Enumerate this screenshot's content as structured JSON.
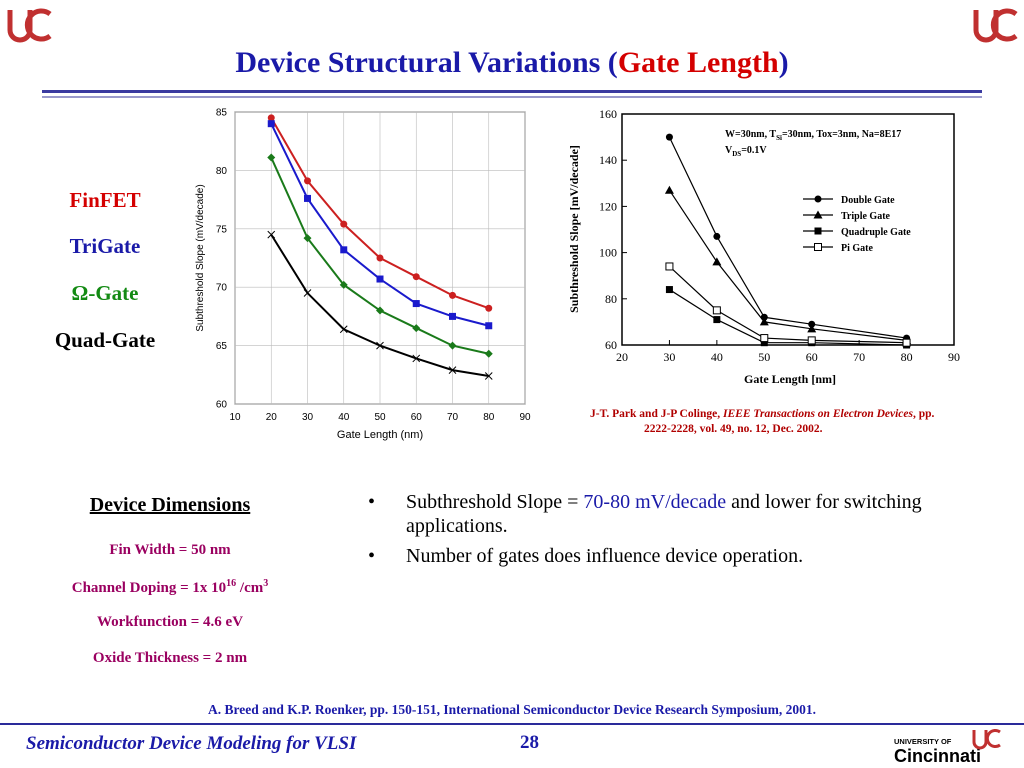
{
  "slide": {
    "title_prefix": "Device Structural Variations (",
    "title_highlight": "Gate Length",
    "title_suffix": ")",
    "page_number": "28",
    "footer": "Semiconductor Device Modeling for VLSI"
  },
  "logos": {
    "top_left_icon": "uc-logo-icon",
    "top_right_icon": "uc-logo-icon",
    "footer_university_line": "UNIVERSITY OF",
    "footer_name": "Cincinnati"
  },
  "legend_labels": [
    {
      "label": "FinFET",
      "color": "#d40000"
    },
    {
      "label": "TriGate",
      "color": "#1a1aa8"
    },
    {
      "label": "Ω-Gate",
      "color": "#138a13"
    },
    {
      "label": "Quad-Gate",
      "color": "#000000"
    }
  ],
  "dimensions": {
    "heading": "Device Dimensions",
    "fin_width": "Fin Width = 50 nm",
    "doping_prefix": "Channel Doping = 1x 10",
    "doping_exp": "16",
    "doping_mid": " /cm",
    "doping_exp2": "3",
    "workfunction": "Workfunction = 4.6 eV",
    "oxide": "Oxide Thickness = 2 nm"
  },
  "bullets": {
    "b1_prefix": "Subthreshold Slope = ",
    "b1_highlight": "70-80 mV/decade",
    "b1_suffix": " and lower for switching applications.",
    "b2": "Number of gates does influence device operation."
  },
  "citations": {
    "right_authors": "J-T. Park and J-P Colinge, ",
    "right_journal": "IEEE Transactions on Electron Devices",
    "right_tail1": ", pp.",
    "right_tail2": "2222-2228, vol. 49, no. 12, Dec. 2002.",
    "bottom": "A. Breed and K.P. Roenker, pp. 150-151, International Semiconductor Device Research Symposium, 2001."
  },
  "chart_data": [
    {
      "type": "line",
      "xlabel": "Gate Length (nm)",
      "ylabel": "Subthreshold Slope (mV/decade)",
      "xlim": [
        10,
        90
      ],
      "ylim": [
        60,
        85
      ],
      "xticks": [
        10,
        20,
        30,
        40,
        50,
        60,
        70,
        80,
        90
      ],
      "yticks": [
        60,
        65,
        70,
        75,
        80,
        85
      ],
      "x": [
        20,
        30,
        40,
        50,
        60,
        70,
        80
      ],
      "series": [
        {
          "values": [
            84.5,
            79.1,
            75.4,
            72.5,
            70.9,
            69.3,
            68.2
          ],
          "color": "#cc2020",
          "marker": "circle"
        },
        {
          "values": [
            84.0,
            77.6,
            73.2,
            70.7,
            68.6,
            67.5,
            66.7
          ],
          "color": "#1a1acc",
          "marker": "square"
        },
        {
          "values": [
            81.1,
            74.2,
            70.2,
            68.0,
            66.5,
            65.0,
            64.3
          ],
          "color": "#1a7a1a",
          "marker": "diamond"
        },
        {
          "values": [
            74.5,
            69.5,
            66.4,
            65.0,
            63.9,
            62.9,
            62.4
          ],
          "color": "#000000",
          "marker": "x"
        }
      ]
    },
    {
      "type": "line",
      "xlabel": "Gate Length [nm]",
      "ylabel": "Subthreshold  Slope [mV/decade]",
      "xlim": [
        20,
        90
      ],
      "ylim": [
        60,
        160
      ],
      "xticks": [
        20,
        30,
        40,
        50,
        60,
        70,
        80,
        90
      ],
      "yticks": [
        60,
        80,
        100,
        120,
        140,
        160
      ],
      "annotation_line1": "W=30nm, T",
      "annotation_sub1": "Si",
      "annotation_line1b": "=30nm, Tox=3nm, Na=8E17",
      "annotation_line2": "V",
      "annotation_sub2": "DS",
      "annotation_line2b": "=0.1V",
      "x": [
        30,
        40,
        50,
        60,
        80
      ],
      "series": [
        {
          "name": "Double Gate",
          "values": [
            150,
            107,
            72,
            69,
            63
          ],
          "marker": "circle"
        },
        {
          "name": "Triple Gate",
          "values": [
            127,
            96,
            70,
            67,
            62
          ],
          "marker": "triangle"
        },
        {
          "name": "Quadruple Gate",
          "values": [
            84,
            71,
            61,
            61,
            60
          ],
          "marker": "square"
        },
        {
          "name": "Pi Gate",
          "values": [
            94,
            75,
            63,
            62,
            61
          ],
          "marker": "open-square"
        }
      ]
    }
  ]
}
